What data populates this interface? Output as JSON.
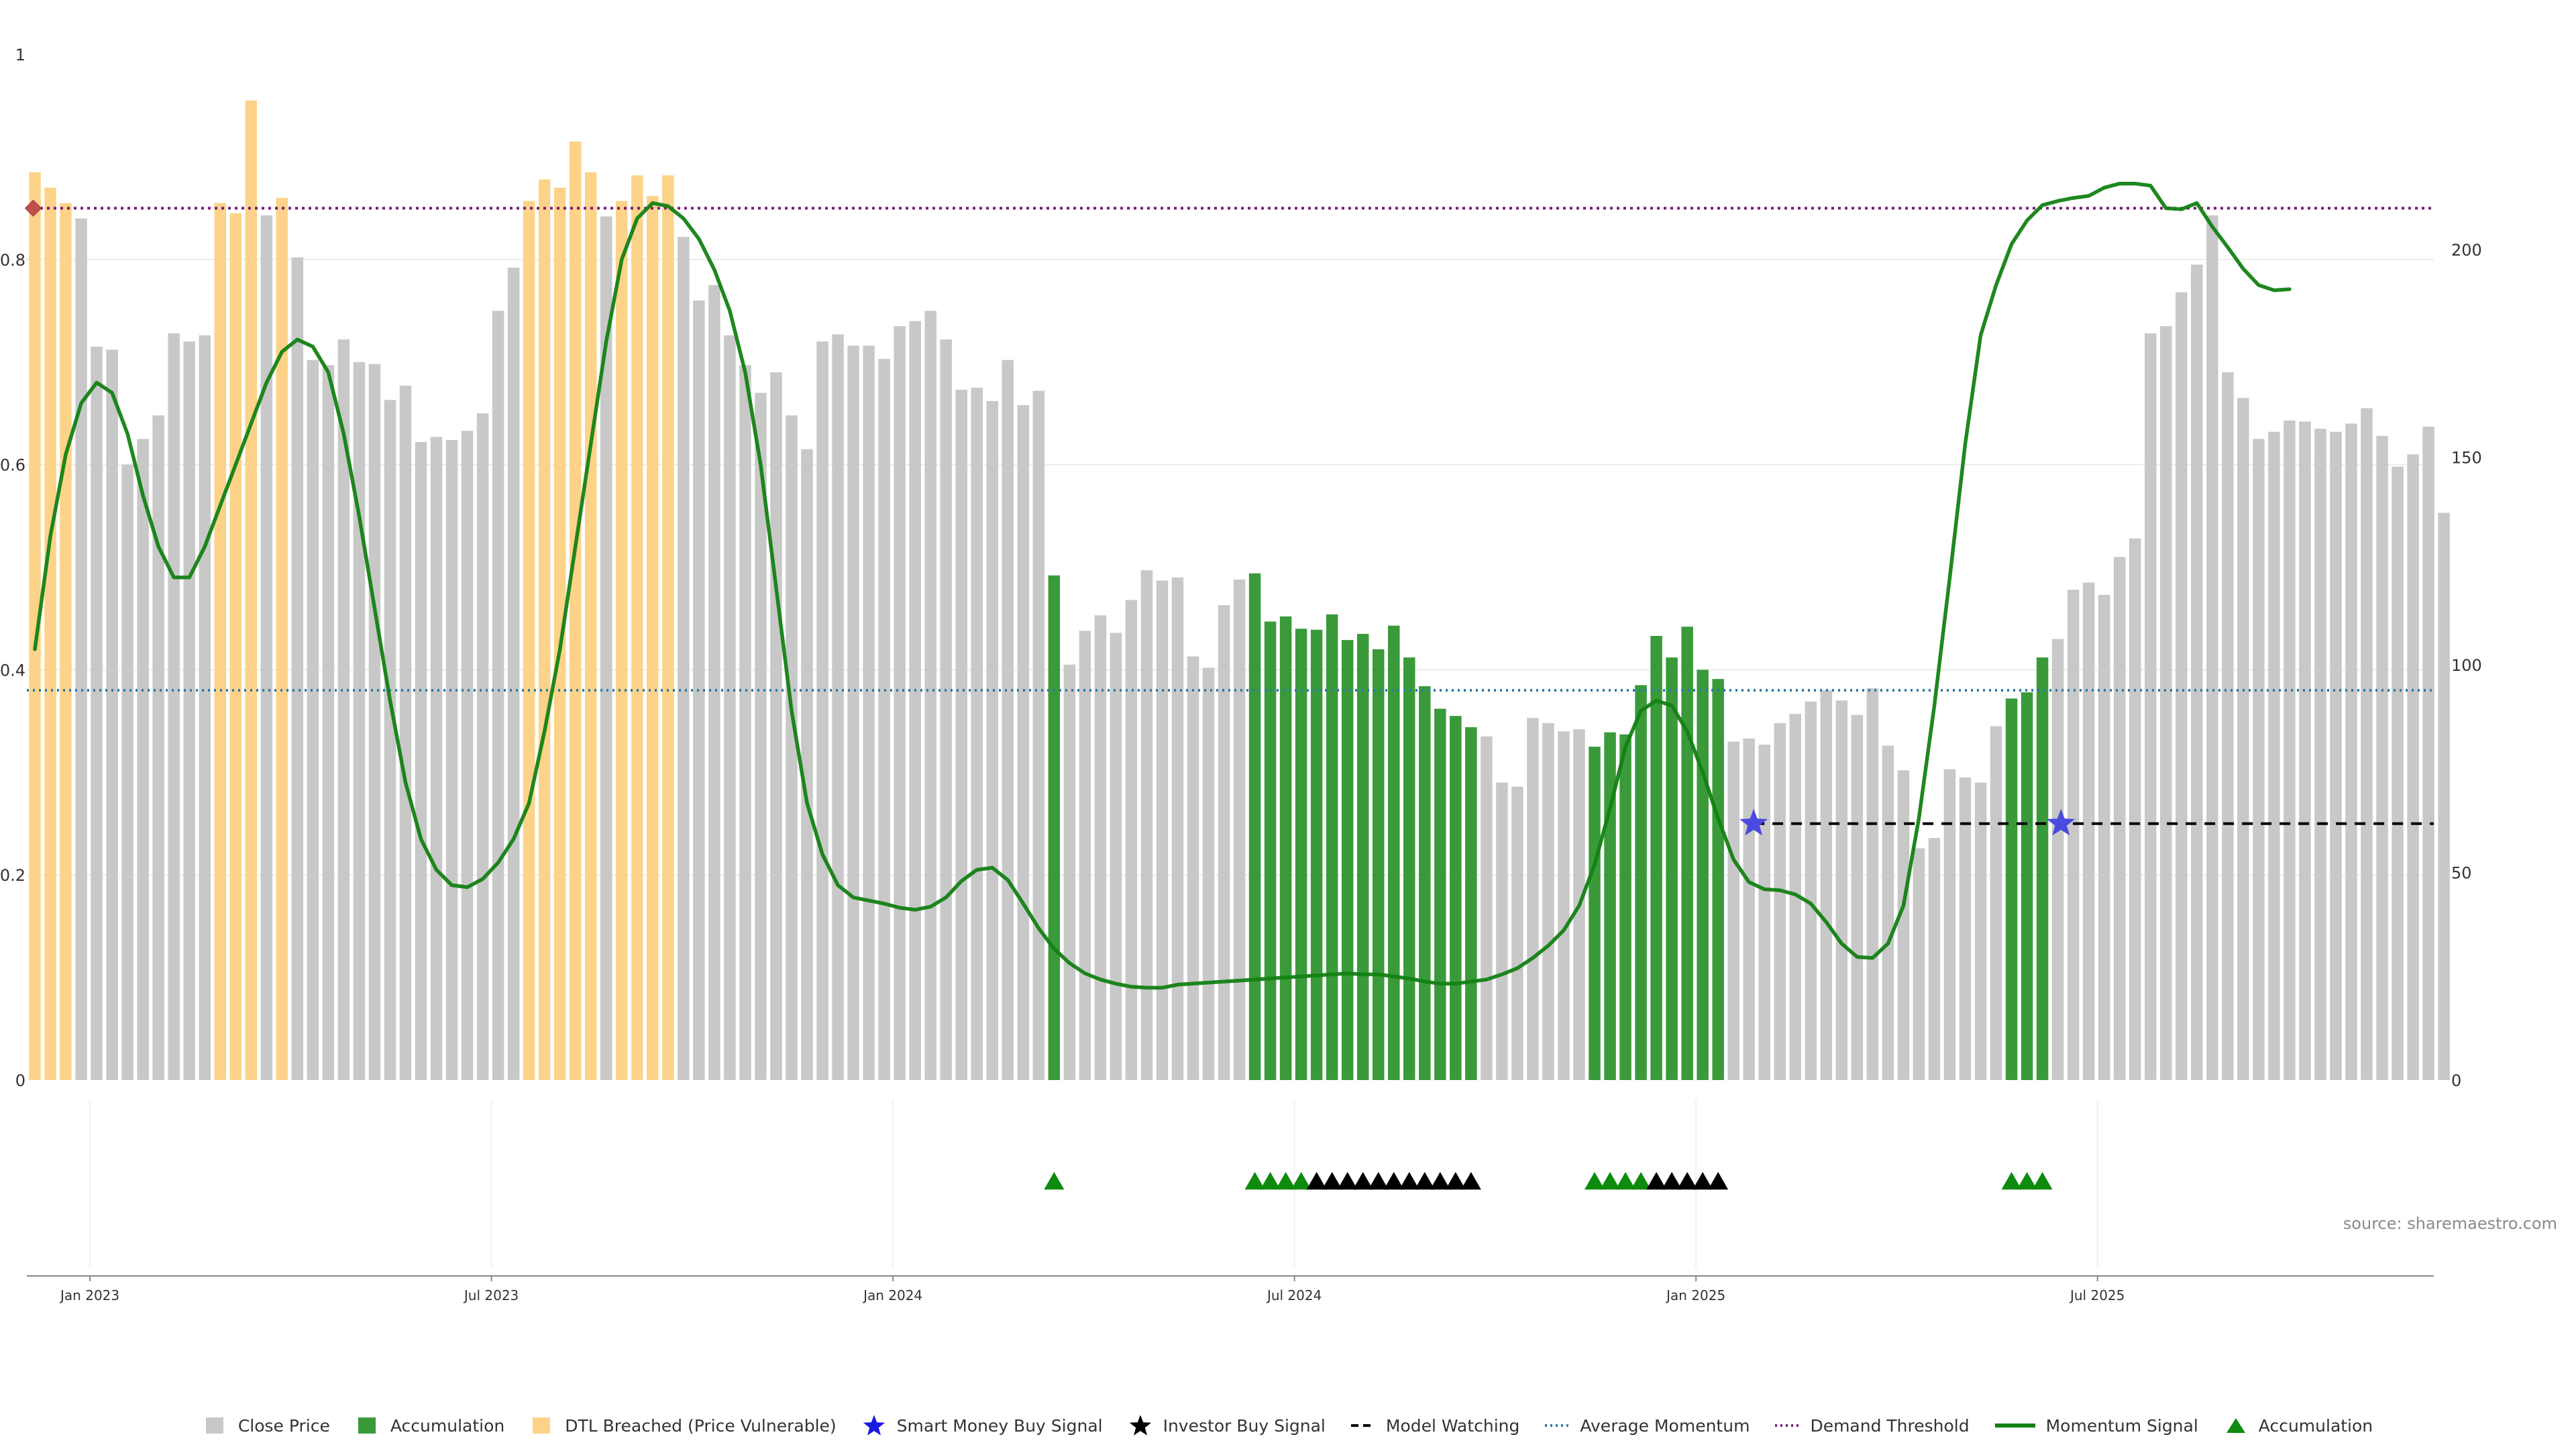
{
  "chart_data": {
    "type": "bar",
    "source": "source: sharemaestro.com",
    "left_axis": {
      "ticks": [
        0,
        0.2,
        0.4,
        0.6,
        0.8,
        1
      ],
      "tick_labels": [
        "0",
        "0.2",
        "0.4",
        "0.6",
        "0.8",
        "1"
      ],
      "range": [
        0,
        1
      ]
    },
    "right_axis": {
      "ticks": [
        0,
        50,
        100,
        150,
        200
      ],
      "tick_labels": [
        "0",
        "50",
        "100",
        "150",
        "200"
      ],
      "range": [
        0,
        247
      ]
    },
    "x_axis": {
      "ticks": [
        4,
        30,
        56,
        82,
        108,
        134
      ],
      "tick_labels": [
        "Jan 2023",
        "Jul 2023",
        "Jan 2024",
        "Jul 2024",
        "Jan 2025",
        "Jul 2025"
      ]
    },
    "average_momentum": 0.38,
    "demand_threshold": 0.85,
    "model_watching_level": 0.25,
    "colors": {
      "close": "#c8c8c8",
      "accumulation": "#3a9a3a",
      "dtl": "#fcd388",
      "smart_money": "#1a1adf",
      "investor": "#000000",
      "model_watching": "#000000",
      "average_momentum": "#2e7ca8",
      "demand_threshold": "#7a1a7a",
      "momentum": "#138113",
      "triangle": "#0e8a0e"
    },
    "bars": [
      {
        "v": 0.885,
        "s": "d"
      },
      {
        "v": 0.87,
        "s": "d"
      },
      {
        "v": 0.855,
        "s": "d"
      },
      {
        "v": 0.84,
        "s": "c"
      },
      {
        "v": 0.715,
        "s": "c"
      },
      {
        "v": 0.712,
        "s": "c"
      },
      {
        "v": 0.6,
        "s": "c"
      },
      {
        "v": 0.625,
        "s": "c"
      },
      {
        "v": 0.648,
        "s": "c"
      },
      {
        "v": 0.728,
        "s": "c"
      },
      {
        "v": 0.72,
        "s": "c"
      },
      {
        "v": 0.726,
        "s": "c"
      },
      {
        "v": 0.855,
        "s": "d"
      },
      {
        "v": 0.845,
        "s": "d"
      },
      {
        "v": 0.955,
        "s": "d"
      },
      {
        "v": 0.843,
        "s": "c"
      },
      {
        "v": 0.86,
        "s": "d"
      },
      {
        "v": 0.802,
        "s": "c"
      },
      {
        "v": 0.702,
        "s": "c"
      },
      {
        "v": 0.697,
        "s": "c"
      },
      {
        "v": 0.722,
        "s": "c"
      },
      {
        "v": 0.7,
        "s": "c"
      },
      {
        "v": 0.698,
        "s": "c"
      },
      {
        "v": 0.663,
        "s": "c"
      },
      {
        "v": 0.677,
        "s": "c"
      },
      {
        "v": 0.622,
        "s": "c"
      },
      {
        "v": 0.627,
        "s": "c"
      },
      {
        "v": 0.624,
        "s": "c"
      },
      {
        "v": 0.633,
        "s": "c"
      },
      {
        "v": 0.65,
        "s": "c"
      },
      {
        "v": 0.75,
        "s": "c"
      },
      {
        "v": 0.792,
        "s": "c"
      },
      {
        "v": 0.857,
        "s": "d"
      },
      {
        "v": 0.878,
        "s": "d"
      },
      {
        "v": 0.87,
        "s": "d"
      },
      {
        "v": 0.915,
        "s": "d"
      },
      {
        "v": 0.885,
        "s": "d"
      },
      {
        "v": 0.842,
        "s": "c"
      },
      {
        "v": 0.857,
        "s": "d"
      },
      {
        "v": 0.882,
        "s": "d"
      },
      {
        "v": 0.862,
        "s": "d"
      },
      {
        "v": 0.882,
        "s": "d"
      },
      {
        "v": 0.822,
        "s": "c"
      },
      {
        "v": 0.76,
        "s": "c"
      },
      {
        "v": 0.775,
        "s": "c"
      },
      {
        "v": 0.726,
        "s": "c"
      },
      {
        "v": 0.697,
        "s": "c"
      },
      {
        "v": 0.67,
        "s": "c"
      },
      {
        "v": 0.69,
        "s": "c"
      },
      {
        "v": 0.648,
        "s": "c"
      },
      {
        "v": 0.615,
        "s": "c"
      },
      {
        "v": 0.72,
        "s": "c"
      },
      {
        "v": 0.727,
        "s": "c"
      },
      {
        "v": 0.716,
        "s": "c"
      },
      {
        "v": 0.716,
        "s": "c"
      },
      {
        "v": 0.703,
        "s": "c"
      },
      {
        "v": 0.735,
        "s": "c"
      },
      {
        "v": 0.74,
        "s": "c"
      },
      {
        "v": 0.75,
        "s": "c"
      },
      {
        "v": 0.722,
        "s": "c"
      },
      {
        "v": 0.673,
        "s": "c"
      },
      {
        "v": 0.675,
        "s": "c"
      },
      {
        "v": 0.662,
        "s": "c"
      },
      {
        "v": 0.702,
        "s": "c"
      },
      {
        "v": 0.658,
        "s": "c"
      },
      {
        "v": 0.672,
        "s": "c"
      },
      {
        "v": 0.492,
        "s": "a"
      },
      {
        "v": 0.405,
        "s": "c"
      },
      {
        "v": 0.438,
        "s": "c"
      },
      {
        "v": 0.453,
        "s": "c"
      },
      {
        "v": 0.436,
        "s": "c"
      },
      {
        "v": 0.468,
        "s": "c"
      },
      {
        "v": 0.497,
        "s": "c"
      },
      {
        "v": 0.487,
        "s": "c"
      },
      {
        "v": 0.49,
        "s": "c"
      },
      {
        "v": 0.413,
        "s": "c"
      },
      {
        "v": 0.402,
        "s": "c"
      },
      {
        "v": 0.463,
        "s": "c"
      },
      {
        "v": 0.488,
        "s": "c"
      },
      {
        "v": 0.494,
        "s": "a"
      },
      {
        "v": 0.447,
        "s": "a"
      },
      {
        "v": 0.452,
        "s": "a"
      },
      {
        "v": 0.44,
        "s": "a"
      },
      {
        "v": 0.439,
        "s": "a"
      },
      {
        "v": 0.454,
        "s": "a"
      },
      {
        "v": 0.429,
        "s": "a"
      },
      {
        "v": 0.435,
        "s": "a"
      },
      {
        "v": 0.42,
        "s": "a"
      },
      {
        "v": 0.443,
        "s": "a"
      },
      {
        "v": 0.412,
        "s": "a"
      },
      {
        "v": 0.384,
        "s": "a"
      },
      {
        "v": 0.362,
        "s": "a"
      },
      {
        "v": 0.355,
        "s": "a"
      },
      {
        "v": 0.344,
        "s": "a"
      },
      {
        "v": 0.335,
        "s": "c"
      },
      {
        "v": 0.29,
        "s": "c"
      },
      {
        "v": 0.286,
        "s": "c"
      },
      {
        "v": 0.353,
        "s": "c"
      },
      {
        "v": 0.348,
        "s": "c"
      },
      {
        "v": 0.34,
        "s": "c"
      },
      {
        "v": 0.342,
        "s": "c"
      },
      {
        "v": 0.325,
        "s": "a"
      },
      {
        "v": 0.339,
        "s": "a"
      },
      {
        "v": 0.337,
        "s": "a"
      },
      {
        "v": 0.385,
        "s": "a"
      },
      {
        "v": 0.433,
        "s": "a"
      },
      {
        "v": 0.412,
        "s": "a"
      },
      {
        "v": 0.442,
        "s": "a"
      },
      {
        "v": 0.4,
        "s": "a"
      },
      {
        "v": 0.391,
        "s": "a"
      },
      {
        "v": 0.33,
        "s": "c"
      },
      {
        "v": 0.333,
        "s": "c"
      },
      {
        "v": 0.327,
        "s": "c"
      },
      {
        "v": 0.348,
        "s": "c"
      },
      {
        "v": 0.357,
        "s": "c"
      },
      {
        "v": 0.369,
        "s": "c"
      },
      {
        "v": 0.38,
        "s": "c"
      },
      {
        "v": 0.37,
        "s": "c"
      },
      {
        "v": 0.356,
        "s": "c"
      },
      {
        "v": 0.382,
        "s": "c"
      },
      {
        "v": 0.326,
        "s": "c"
      },
      {
        "v": 0.302,
        "s": "c"
      },
      {
        "v": 0.226,
        "s": "c"
      },
      {
        "v": 0.236,
        "s": "c"
      },
      {
        "v": 0.303,
        "s": "c"
      },
      {
        "v": 0.295,
        "s": "c"
      },
      {
        "v": 0.29,
        "s": "c"
      },
      {
        "v": 0.345,
        "s": "c"
      },
      {
        "v": 0.372,
        "s": "a"
      },
      {
        "v": 0.378,
        "s": "a"
      },
      {
        "v": 0.412,
        "s": "a"
      },
      {
        "v": 0.43,
        "s": "c"
      },
      {
        "v": 0.478,
        "s": "c"
      },
      {
        "v": 0.485,
        "s": "c"
      },
      {
        "v": 0.473,
        "s": "c"
      },
      {
        "v": 0.51,
        "s": "c"
      },
      {
        "v": 0.528,
        "s": "c"
      },
      {
        "v": 0.728,
        "s": "c"
      },
      {
        "v": 0.735,
        "s": "c"
      },
      {
        "v": 0.768,
        "s": "c"
      },
      {
        "v": 0.795,
        "s": "c"
      },
      {
        "v": 0.843,
        "s": "c"
      },
      {
        "v": 0.69,
        "s": "c"
      },
      {
        "v": 0.665,
        "s": "c"
      },
      {
        "v": 0.625,
        "s": "c"
      },
      {
        "v": 0.632,
        "s": "c"
      },
      {
        "v": 0.643,
        "s": "c"
      },
      {
        "v": 0.642,
        "s": "c"
      },
      {
        "v": 0.635,
        "s": "c"
      },
      {
        "v": 0.632,
        "s": "c"
      },
      {
        "v": 0.64,
        "s": "c"
      },
      {
        "v": 0.655,
        "s": "c"
      },
      {
        "v": 0.628,
        "s": "c"
      },
      {
        "v": 0.598,
        "s": "c"
      },
      {
        "v": 0.61,
        "s": "c"
      },
      {
        "v": 0.637,
        "s": "c"
      },
      {
        "v": 0.553,
        "s": "c"
      }
    ],
    "momentum": [
      [
        0,
        0.42
      ],
      [
        1,
        0.53
      ],
      [
        2,
        0.61
      ],
      [
        3,
        0.66
      ],
      [
        4,
        0.68
      ],
      [
        5,
        0.67
      ],
      [
        6,
        0.63
      ],
      [
        7,
        0.57
      ],
      [
        8,
        0.52
      ],
      [
        9,
        0.49
      ],
      [
        10,
        0.49
      ],
      [
        11,
        0.52
      ],
      [
        12,
        0.56
      ],
      [
        13,
        0.6
      ],
      [
        14,
        0.64
      ],
      [
        15,
        0.68
      ],
      [
        16,
        0.71
      ],
      [
        17,
        0.722
      ],
      [
        18,
        0.715
      ],
      [
        19,
        0.69
      ],
      [
        20,
        0.63
      ],
      [
        21,
        0.55
      ],
      [
        22,
        0.46
      ],
      [
        23,
        0.37
      ],
      [
        24,
        0.29
      ],
      [
        25,
        0.235
      ],
      [
        26,
        0.205
      ],
      [
        27,
        0.19
      ],
      [
        28,
        0.188
      ],
      [
        29,
        0.196
      ],
      [
        30,
        0.212
      ],
      [
        31,
        0.235
      ],
      [
        32,
        0.27
      ],
      [
        33,
        0.34
      ],
      [
        34,
        0.42
      ],
      [
        35,
        0.52
      ],
      [
        36,
        0.62
      ],
      [
        37,
        0.72
      ],
      [
        38,
        0.8
      ],
      [
        39,
        0.84
      ],
      [
        40,
        0.855
      ],
      [
        41,
        0.852
      ],
      [
        42,
        0.84
      ],
      [
        43,
        0.82
      ],
      [
        44,
        0.79
      ],
      [
        45,
        0.75
      ],
      [
        46,
        0.69
      ],
      [
        47,
        0.6
      ],
      [
        48,
        0.48
      ],
      [
        49,
        0.36
      ],
      [
        50,
        0.27
      ],
      [
        51,
        0.22
      ],
      [
        52,
        0.19
      ],
      [
        53,
        0.178
      ],
      [
        54,
        0.175
      ],
      [
        55,
        0.172
      ],
      [
        56,
        0.168
      ],
      [
        57,
        0.166
      ],
      [
        58,
        0.169
      ],
      [
        59,
        0.178
      ],
      [
        60,
        0.194
      ],
      [
        61,
        0.205
      ],
      [
        62,
        0.207
      ],
      [
        63,
        0.195
      ],
      [
        64,
        0.172
      ],
      [
        65,
        0.148
      ],
      [
        66,
        0.128
      ],
      [
        67,
        0.114
      ],
      [
        68,
        0.104
      ],
      [
        69,
        0.098
      ],
      [
        70,
        0.094
      ],
      [
        71,
        0.091
      ],
      [
        72,
        0.09
      ],
      [
        73,
        0.09
      ],
      [
        74,
        0.093
      ],
      [
        75,
        0.094
      ],
      [
        76,
        0.095
      ],
      [
        77,
        0.096
      ],
      [
        78,
        0.097
      ],
      [
        79,
        0.098
      ],
      [
        80,
        0.099
      ],
      [
        81,
        0.1
      ],
      [
        82,
        0.101
      ],
      [
        83,
        0.102
      ],
      [
        84,
        0.103
      ],
      [
        85,
        0.104
      ],
      [
        86,
        0.103
      ],
      [
        87,
        0.103
      ],
      [
        88,
        0.101
      ],
      [
        89,
        0.099
      ],
      [
        90,
        0.096
      ],
      [
        91,
        0.094
      ],
      [
        92,
        0.094
      ],
      [
        93,
        0.096
      ],
      [
        94,
        0.098
      ],
      [
        95,
        0.103
      ],
      [
        96,
        0.109
      ],
      [
        97,
        0.119
      ],
      [
        98,
        0.131
      ],
      [
        99,
        0.146
      ],
      [
        100,
        0.17
      ],
      [
        101,
        0.21
      ],
      [
        102,
        0.265
      ],
      [
        103,
        0.325
      ],
      [
        104,
        0.36
      ],
      [
        105,
        0.37
      ],
      [
        106,
        0.365
      ],
      [
        107,
        0.34
      ],
      [
        108,
        0.3
      ],
      [
        109,
        0.255
      ],
      [
        110,
        0.215
      ],
      [
        111,
        0.193
      ],
      [
        112,
        0.186
      ],
      [
        113,
        0.185
      ],
      [
        114,
        0.181
      ],
      [
        115,
        0.172
      ],
      [
        116,
        0.154
      ],
      [
        117,
        0.133
      ],
      [
        118,
        0.12
      ],
      [
        119,
        0.119
      ],
      [
        120,
        0.133
      ],
      [
        121,
        0.17
      ],
      [
        122,
        0.255
      ],
      [
        123,
        0.365
      ],
      [
        124,
        0.49
      ],
      [
        125,
        0.62
      ],
      [
        126,
        0.726
      ],
      [
        127,
        0.775
      ],
      [
        128,
        0.815
      ],
      [
        129,
        0.838
      ],
      [
        130,
        0.853
      ],
      [
        131,
        0.857
      ],
      [
        132,
        0.86
      ],
      [
        133,
        0.862
      ],
      [
        134,
        0.87
      ],
      [
        135,
        0.874
      ],
      [
        136,
        0.874
      ],
      [
        137,
        0.872
      ],
      [
        138,
        0.85
      ],
      [
        139,
        0.849
      ],
      [
        140,
        0.855
      ],
      [
        141,
        0.832
      ],
      [
        142,
        0.812
      ],
      [
        143,
        0.791
      ],
      [
        144,
        0.775
      ],
      [
        145,
        0.77
      ],
      [
        146,
        0.771
      ]
    ],
    "triangles": [
      {
        "i": 66,
        "c": "g"
      },
      {
        "i": 79,
        "c": "g"
      },
      {
        "i": 80,
        "c": "g"
      },
      {
        "i": 81,
        "c": "g"
      },
      {
        "i": 82,
        "c": "g"
      },
      {
        "i": 83,
        "c": "k"
      },
      {
        "i": 84,
        "c": "k"
      },
      {
        "i": 85,
        "c": "k"
      },
      {
        "i": 86,
        "c": "k"
      },
      {
        "i": 87,
        "c": "k"
      },
      {
        "i": 88,
        "c": "k"
      },
      {
        "i": 89,
        "c": "k"
      },
      {
        "i": 90,
        "c": "k"
      },
      {
        "i": 91,
        "c": "k"
      },
      {
        "i": 92,
        "c": "k"
      },
      {
        "i": 93,
        "c": "k"
      },
      {
        "i": 101,
        "c": "g"
      },
      {
        "i": 102,
        "c": "g"
      },
      {
        "i": 103,
        "c": "g"
      },
      {
        "i": 104,
        "c": "g"
      },
      {
        "i": 105,
        "c": "k"
      },
      {
        "i": 106,
        "c": "k"
      },
      {
        "i": 107,
        "c": "k"
      },
      {
        "i": 108,
        "c": "k"
      },
      {
        "i": 109,
        "c": "k"
      },
      {
        "i": 128,
        "c": "g"
      },
      {
        "i": 129,
        "c": "g"
      },
      {
        "i": 130,
        "c": "g"
      }
    ],
    "smart_money_signals": [
      111.3,
      131.2
    ],
    "model_watching_from": 111.3,
    "demand_threshold_marker_at": 0.5,
    "legend": [
      {
        "key": "close",
        "label": "Close Price"
      },
      {
        "key": "accumulation",
        "label": "Accumulation"
      },
      {
        "key": "dtl",
        "label": "DTL Breached (Price Vulnerable)"
      },
      {
        "key": "smart_money",
        "label": "Smart Money Buy Signal"
      },
      {
        "key": "investor",
        "label": "Investor Buy Signal"
      },
      {
        "key": "model_watching",
        "label": "Model Watching"
      },
      {
        "key": "average_momentum",
        "label": "Average Momentum"
      },
      {
        "key": "demand_threshold",
        "label": "Demand Threshold"
      },
      {
        "key": "momentum",
        "label": "Momentum Signal"
      },
      {
        "key": "triangle",
        "label": "Accumulation"
      }
    ]
  }
}
